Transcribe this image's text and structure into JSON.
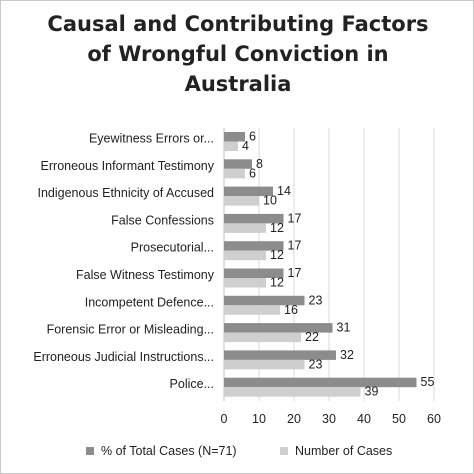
{
  "chart_data": {
    "type": "bar",
    "orientation": "horizontal",
    "title_lines": [
      "Causal and Contributing Factors",
      "of Wrongful Conviction in",
      "Australia"
    ],
    "categories": [
      "Eyewitness Errors or...",
      "Erroneous Informant Testimony",
      "Indigenous Ethnicity of Accused",
      "False Confessions",
      "Prosecutorial...",
      "False Witness Testimony",
      "Incompetent Defence...",
      "Forensic Error or Misleading...",
      "Erroneous Judicial Instructions...",
      "Police..."
    ],
    "series": [
      {
        "name": "% of Total Cases (N=71)",
        "color": "#8c8c8c",
        "values": [
          6,
          8,
          14,
          17,
          17,
          17,
          23,
          31,
          32,
          55
        ]
      },
      {
        "name": "Number of Cases",
        "color": "#cfcfcf",
        "values": [
          4,
          6,
          10,
          12,
          12,
          12,
          16,
          22,
          23,
          39
        ]
      }
    ],
    "xlim": [
      0,
      60
    ],
    "xticks": [
      "0",
      "10",
      "20",
      "30",
      "40",
      "50",
      "60"
    ],
    "grid": true,
    "legend_position": "bottom"
  }
}
